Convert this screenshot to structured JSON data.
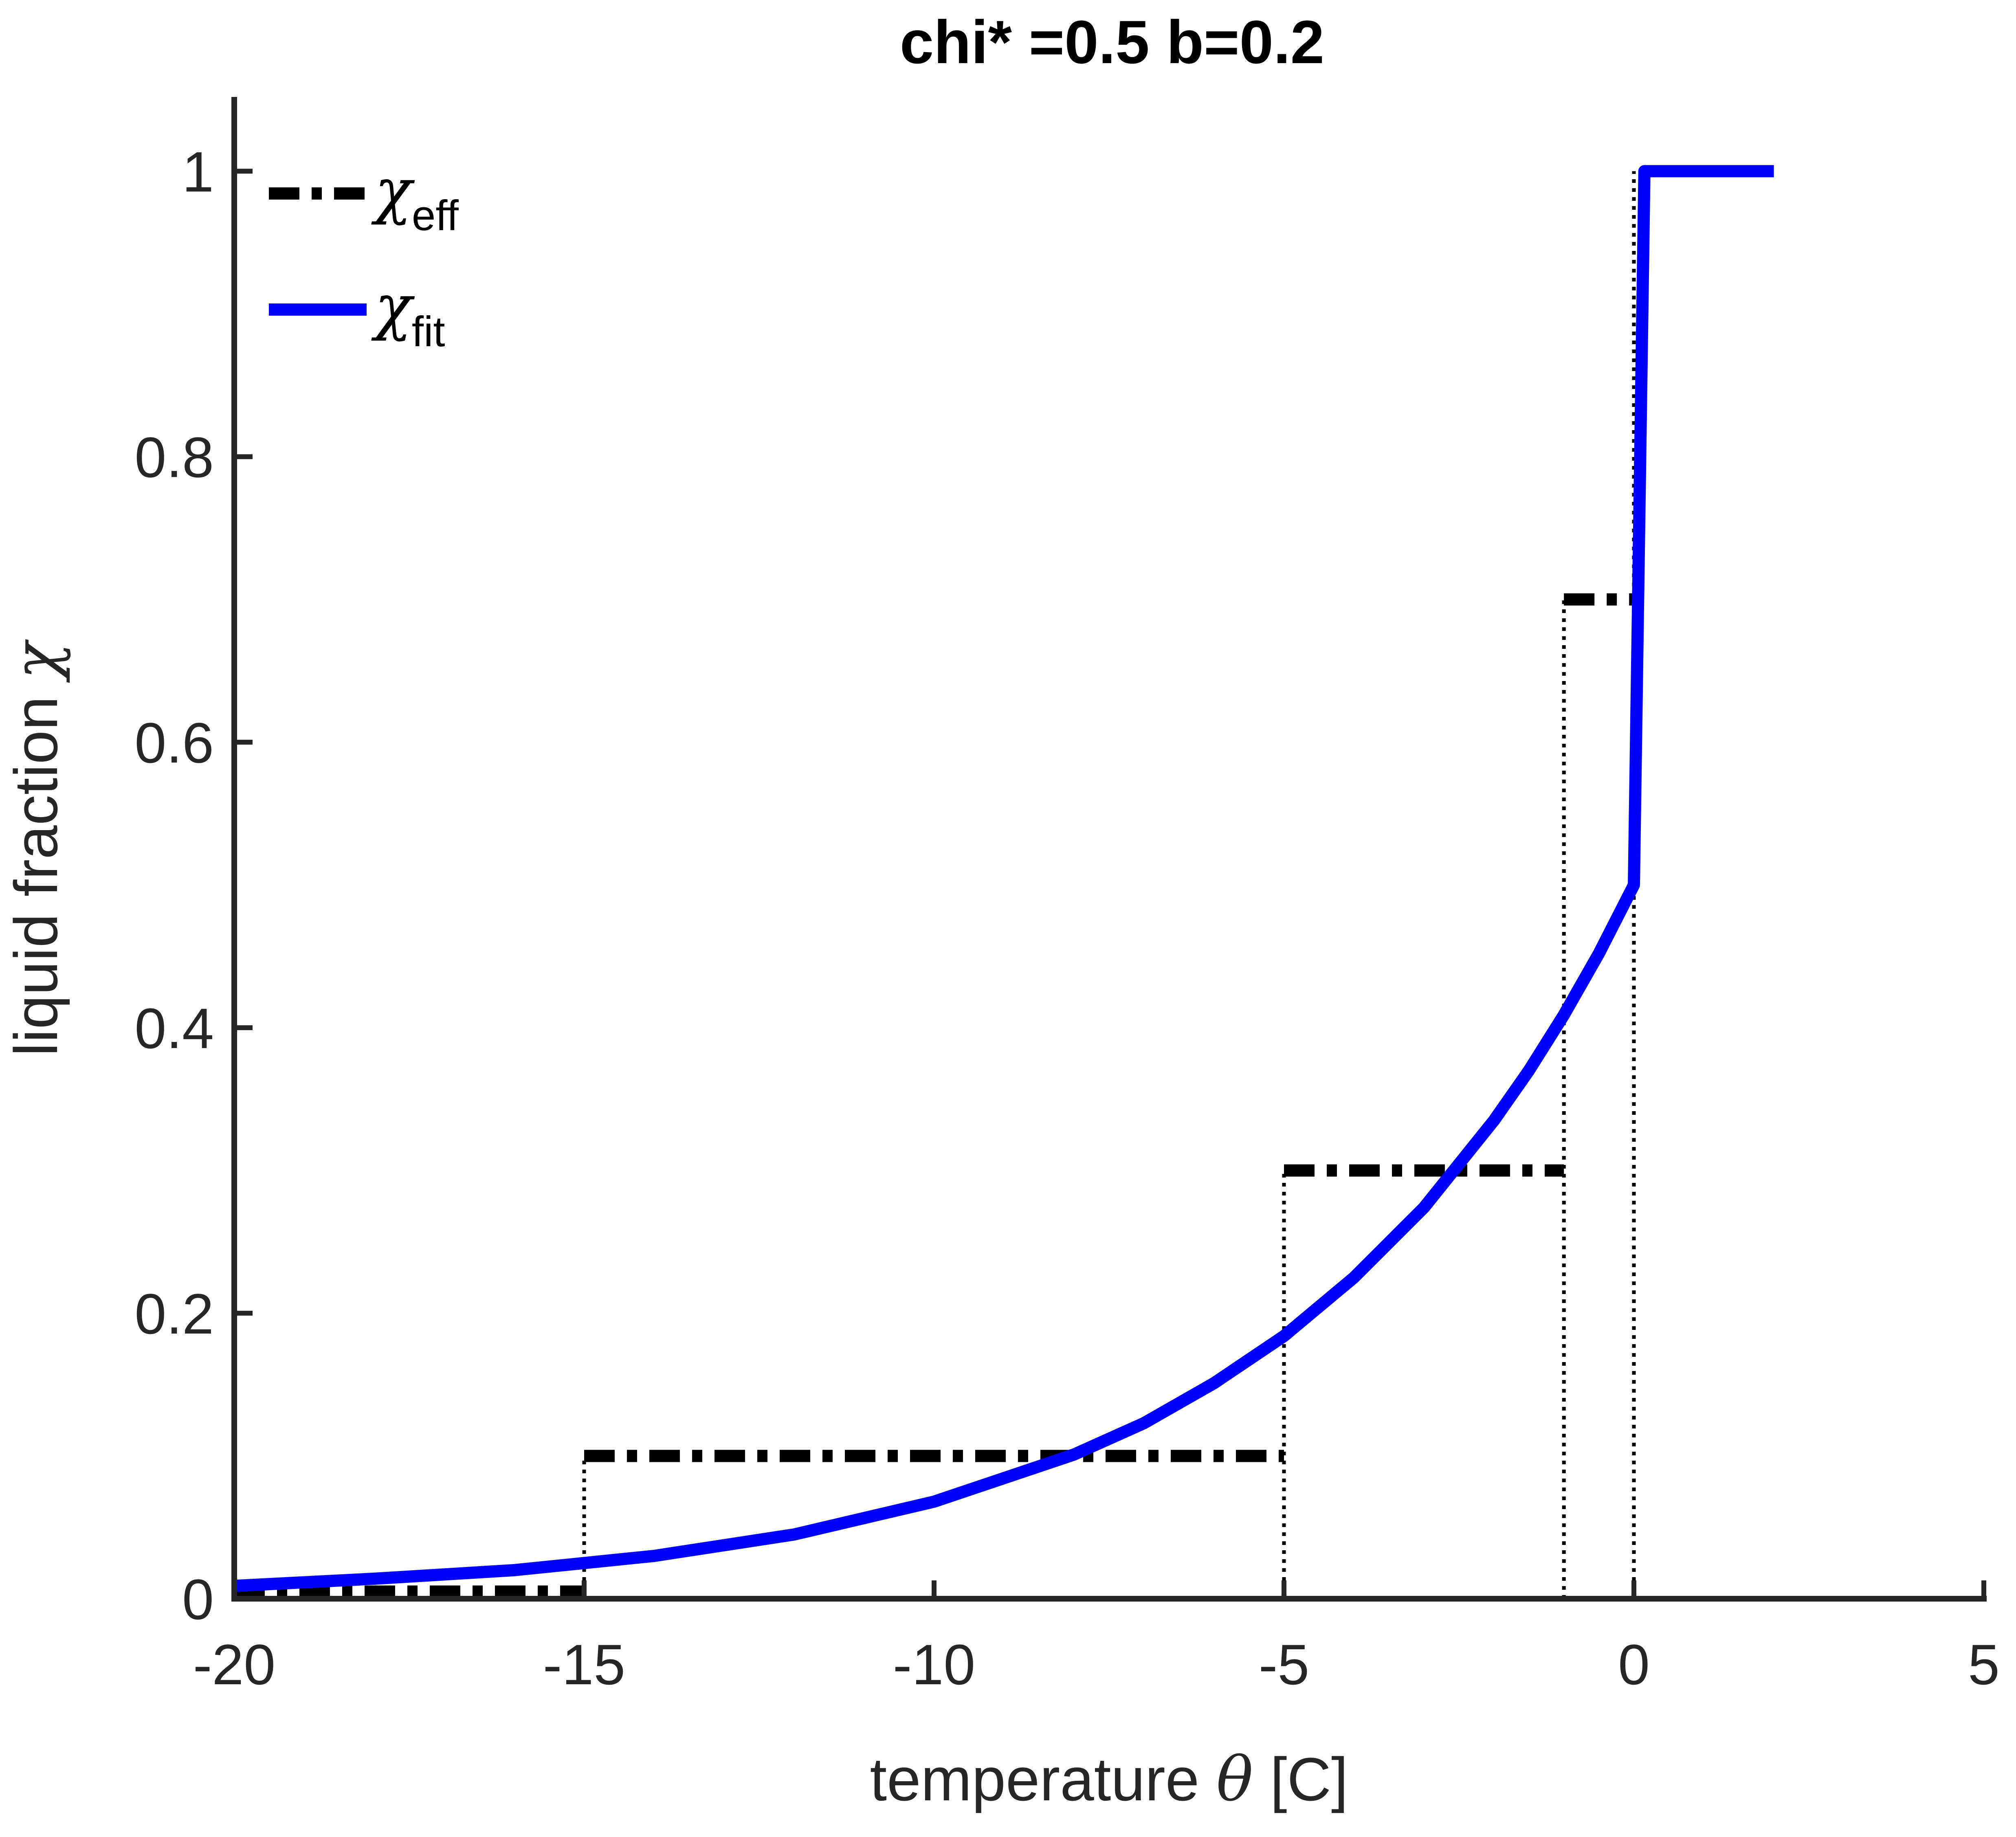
{
  "chart_data": {
    "type": "line",
    "title": "chi* =0.5 b=0.2",
    "xlabel": {
      "text": "temperature ",
      "symbol": "θ",
      "unit": " [C]"
    },
    "ylabel": {
      "text": "liquid fraction ",
      "symbol": "χ"
    },
    "xlim": [
      -20,
      5
    ],
    "ylim": [
      0,
      1.05
    ],
    "xticks": [
      -20,
      -15,
      -10,
      -5,
      0,
      5
    ],
    "xtick_labels": [
      "-20",
      "-15",
      "-10",
      "-5",
      "0",
      "5"
    ],
    "yticks": [
      0,
      0.2,
      0.4,
      0.6,
      0.8,
      1
    ],
    "ytick_labels": [
      "0",
      "0.2",
      "0.4",
      "0.6",
      "0.8",
      "1"
    ],
    "grid": false,
    "legend_position": "top-left",
    "series": [
      {
        "key": "eff",
        "name": {
          "symbol": "χ",
          "sub": "eff"
        },
        "style": "dashdot",
        "color": "#000000",
        "segments": [
          {
            "x": [
              -20,
              -15
            ],
            "y": [
              0.005,
              0.005
            ]
          },
          {
            "x": [
              -15,
              -5
            ],
            "y": [
              0.1,
              0.1
            ]
          },
          {
            "x": [
              -5,
              -1
            ],
            "y": [
              0.3,
              0.3
            ]
          },
          {
            "x": [
              -1,
              0
            ],
            "y": [
              0.7,
              0.7
            ]
          }
        ]
      },
      {
        "key": "fit",
        "name": {
          "symbol": "χ",
          "sub": "fit"
        },
        "style": "solid",
        "color": "#0000ff",
        "x": [
          -20,
          -18,
          -16,
          -14,
          -12,
          -10,
          -8,
          -7,
          -6,
          -5,
          -4,
          -3,
          -2,
          -1.5,
          -1,
          -0.5,
          0,
          0.15,
          2
        ],
        "y": [
          0.009,
          0.014,
          0.02,
          0.03,
          0.045,
          0.068,
          0.101,
          0.123,
          0.151,
          0.184,
          0.225,
          0.274,
          0.335,
          0.37,
          0.409,
          0.452,
          0.5,
          1,
          1
        ]
      }
    ],
    "reference_lines": {
      "style": "dotted",
      "color": "#000000",
      "vertical": [
        {
          "x": -15,
          "y": [
            0,
            0.1
          ]
        },
        {
          "x": -5,
          "y": [
            0,
            0.3
          ]
        },
        {
          "x": -1,
          "y": [
            0,
            0.7
          ]
        },
        {
          "x": 0,
          "y": [
            0,
            1
          ]
        }
      ]
    }
  }
}
